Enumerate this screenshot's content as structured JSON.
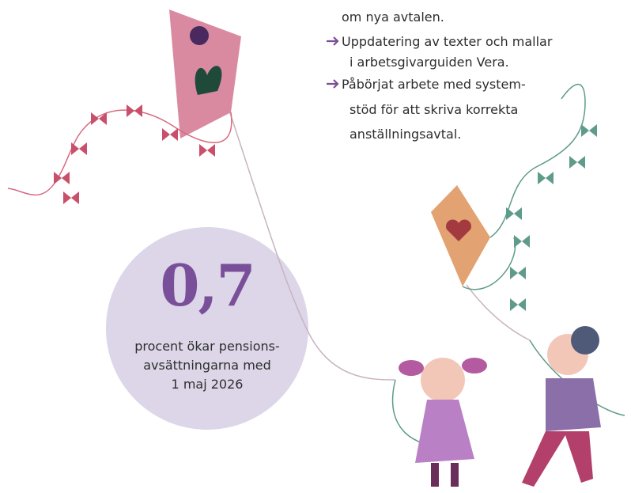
{
  "list": {
    "lead": "om nya avtalen.",
    "items": [
      {
        "lines": [
          "Uppdatering av texter och mallar",
          "i arbetsgivarguiden Vera."
        ]
      },
      {
        "lines": [
          "Påbörjat arbete med system-",
          "stöd för att skriva korrekta",
          "anställningsavtal."
        ]
      }
    ]
  },
  "fact": {
    "number": "0,7",
    "caption": [
      "procent ökar pensions-",
      "avsättningarna med",
      "1 maj 2026"
    ]
  }
}
